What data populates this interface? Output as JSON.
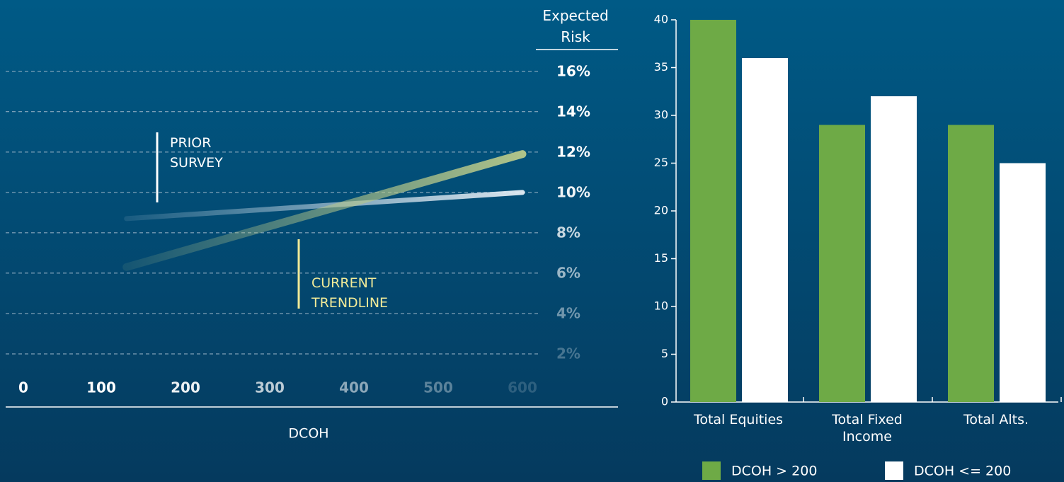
{
  "chart_data": [
    {
      "type": "line",
      "title": "Expected Risk",
      "xlabel": "DCOH",
      "x": [
        130,
        600
      ],
      "xlim": [
        0,
        600
      ],
      "xticks": [
        0,
        100,
        200,
        300,
        400,
        500,
        600
      ],
      "ylim": [
        0,
        17.5
      ],
      "yticks": [
        {
          "value": 2,
          "label": "2%"
        },
        {
          "value": 4,
          "label": "4%"
        },
        {
          "value": 6,
          "label": "6%"
        },
        {
          "value": 8,
          "label": "8%"
        },
        {
          "value": 10,
          "label": "10%"
        },
        {
          "value": 12,
          "label": "12%"
        },
        {
          "value": 14,
          "label": "14%"
        },
        {
          "value": 16,
          "label": "16%"
        }
      ],
      "grid": true,
      "series": [
        {
          "name": "PRIOR SURVEY",
          "color": "#e4edf5",
          "label_color": "#ffffff",
          "values": [
            8.7,
            10.0
          ]
        },
        {
          "name": "CURRENT TRENDLINE",
          "color": "#b8c98a",
          "label_color": "#f2eb98",
          "values": [
            6.3,
            11.9
          ]
        }
      ]
    },
    {
      "type": "bar",
      "categories": [
        "Total Equities",
        "Total Fixed Income",
        "Total Alts."
      ],
      "ylim": [
        0,
        40
      ],
      "yticks": [
        0,
        5,
        10,
        15,
        20,
        25,
        30,
        35,
        40
      ],
      "series": [
        {
          "name": "DCOH > 200",
          "color": "#6eaa46",
          "values": [
            40,
            29,
            29
          ]
        },
        {
          "name": "DCOH <= 200",
          "color": "#ffffff",
          "values": [
            36,
            32,
            25
          ]
        }
      ]
    }
  ]
}
